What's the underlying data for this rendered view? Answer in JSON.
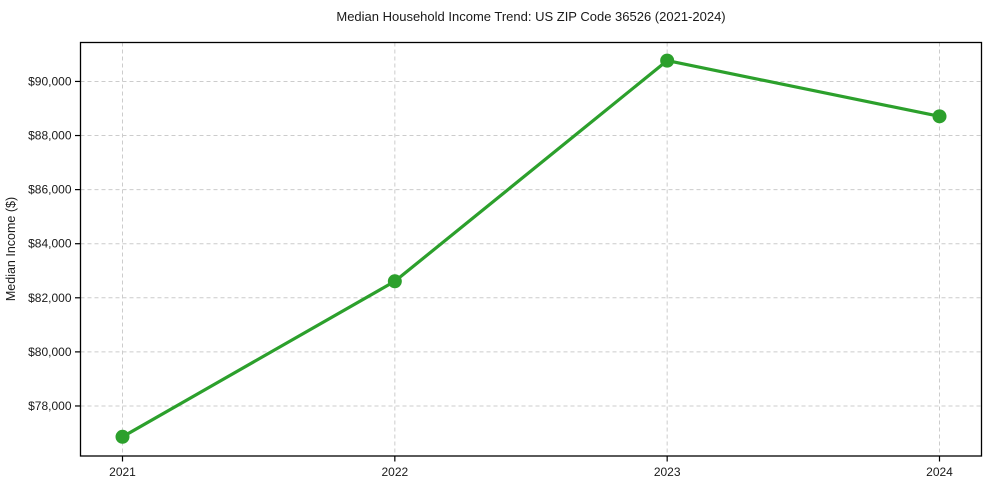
{
  "chart_data": {
    "type": "line",
    "title": "Median Household Income Trend: US ZIP Code 36526 (2021-2024)",
    "xlabel": "",
    "ylabel": "Median Income ($)",
    "x": [
      2021,
      2022,
      2023,
      2024
    ],
    "xtick_labels": [
      "2021",
      "2022",
      "2023",
      "2024"
    ],
    "series": [
      {
        "name": "Median Household Income",
        "values": [
          76860,
          82610,
          90770,
          88710
        ],
        "color": "#2ca02c",
        "marker": "circle"
      }
    ],
    "yticks": [
      78000,
      80000,
      82000,
      84000,
      86000,
      88000,
      90000
    ],
    "ytick_labels": [
      "$78,000",
      "$80,000",
      "$82,000",
      "$84,000",
      "$86,000",
      "$88,000",
      "$90,000"
    ],
    "ylim": [
      76150,
      91440
    ],
    "grid": true,
    "grid_style": "dashed",
    "legend": "none",
    "line_color": "#2ca02c",
    "background_color": "#ffffff"
  }
}
